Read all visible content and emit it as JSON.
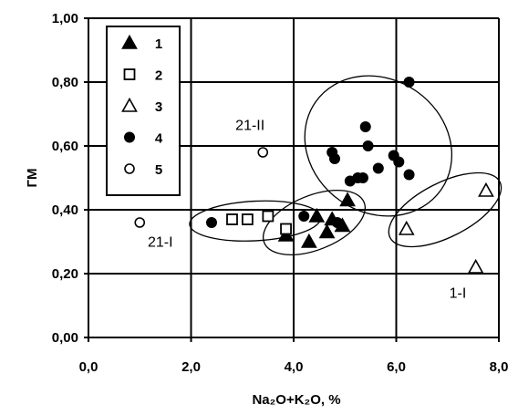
{
  "chart_data": {
    "type": "scatter",
    "xlabel": "Na₂O+K₂O, %",
    "ylabel": "ГМ",
    "xlim": [
      0,
      8
    ],
    "ylim": [
      0,
      1
    ],
    "grid": true,
    "legend_position": "top-left",
    "x_ticks": [
      "0,0",
      "2,0",
      "4,0",
      "6,0",
      "8,0"
    ],
    "y_ticks": [
      "0,00",
      "0,20",
      "0,40",
      "0,60",
      "0,80",
      "1,00"
    ],
    "series": [
      {
        "name": "1",
        "marker": "filled-triangle",
        "points": [
          [
            3.85,
            0.32
          ],
          [
            4.3,
            0.3
          ],
          [
            4.45,
            0.38
          ],
          [
            4.65,
            0.33
          ],
          [
            4.75,
            0.37
          ],
          [
            4.95,
            0.35
          ],
          [
            5.05,
            0.43
          ]
        ]
      },
      {
        "name": "2",
        "marker": "open-square",
        "points": [
          [
            2.8,
            0.37
          ],
          [
            3.1,
            0.37
          ],
          [
            3.5,
            0.38
          ],
          [
            3.85,
            0.34
          ]
        ]
      },
      {
        "name": "3",
        "marker": "open-triangle",
        "points": [
          [
            6.2,
            0.34
          ],
          [
            7.55,
            0.22
          ],
          [
            7.75,
            0.46
          ]
        ]
      },
      {
        "name": "4",
        "marker": "filled-circle",
        "points": [
          [
            2.4,
            0.36
          ],
          [
            4.2,
            0.38
          ],
          [
            4.85,
            0.36
          ],
          [
            4.75,
            0.58
          ],
          [
            4.8,
            0.56
          ],
          [
            5.1,
            0.49
          ],
          [
            5.25,
            0.5
          ],
          [
            5.35,
            0.5
          ],
          [
            5.4,
            0.66
          ],
          [
            5.45,
            0.6
          ],
          [
            5.65,
            0.53
          ],
          [
            5.95,
            0.57
          ],
          [
            6.05,
            0.55
          ],
          [
            6.25,
            0.51
          ],
          [
            6.25,
            0.8
          ]
        ]
      },
      {
        "name": "5",
        "marker": "open-circle",
        "points": [
          [
            1.0,
            0.36
          ],
          [
            3.4,
            0.58
          ]
        ]
      }
    ],
    "annotations": [
      {
        "text": "21-II",
        "x": 3.15,
        "y": 0.65
      },
      {
        "text": "21-I",
        "x": 1.4,
        "y": 0.285
      },
      {
        "text": "1-I",
        "x": 7.2,
        "y": 0.125
      }
    ],
    "ellipses": [
      {
        "cx": 3.25,
        "cy": 0.365,
        "rx": 1.28,
        "ry": 0.062,
        "rotate": -3
      },
      {
        "cx": 4.4,
        "cy": 0.36,
        "rx": 1.05,
        "ry": 0.085,
        "rotate": -22
      },
      {
        "cx": 5.65,
        "cy": 0.6,
        "rx": 1.3,
        "ry": 0.24,
        "rotate": -55
      },
      {
        "cx": 6.95,
        "cy": 0.4,
        "rx": 1.2,
        "ry": 0.085,
        "rotate": -27
      }
    ]
  }
}
